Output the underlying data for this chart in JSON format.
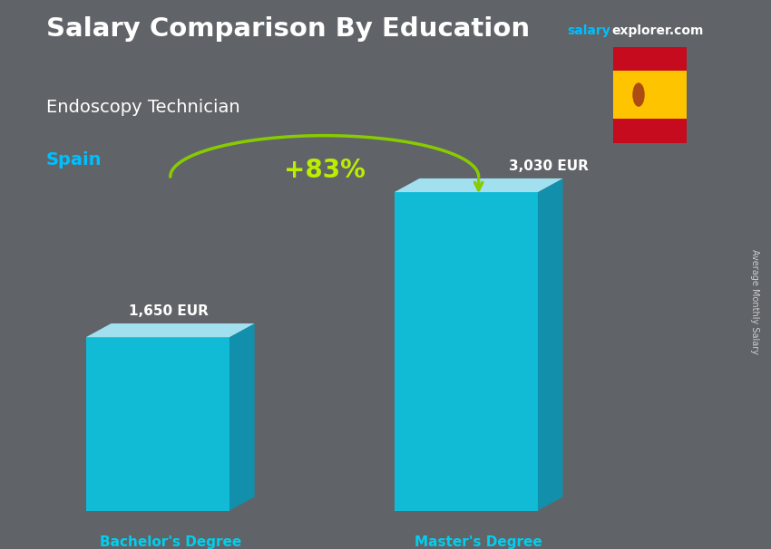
{
  "title": "Salary Comparison By Education",
  "subtitle": "Endoscopy Technician",
  "country": "Spain",
  "categories": [
    "Bachelor's Degree",
    "Master's Degree"
  ],
  "values": [
    1650,
    3030
  ],
  "labels": [
    "1,650 EUR",
    "3,030 EUR"
  ],
  "pct_change": "+83%",
  "bar_color_face": "#00CFEF",
  "bar_color_side": "#0099BB",
  "bar_color_top": "#aaeeff",
  "bg_color": "#606468",
  "title_color": "#ffffff",
  "subtitle_color": "#ffffff",
  "country_color": "#00BFFF",
  "label_color": "#ffffff",
  "cat_label_color": "#00CFEF",
  "pct_color": "#bbee00",
  "arrow_color": "#88cc00",
  "website_salary_color": "#00BFFF",
  "website_rest_color": "#ffffff",
  "side_label": "Average Monthly Salary",
  "side_label_color": "#cccccc",
  "flag_red": "#c60b1e",
  "flag_yellow": "#ffc400"
}
